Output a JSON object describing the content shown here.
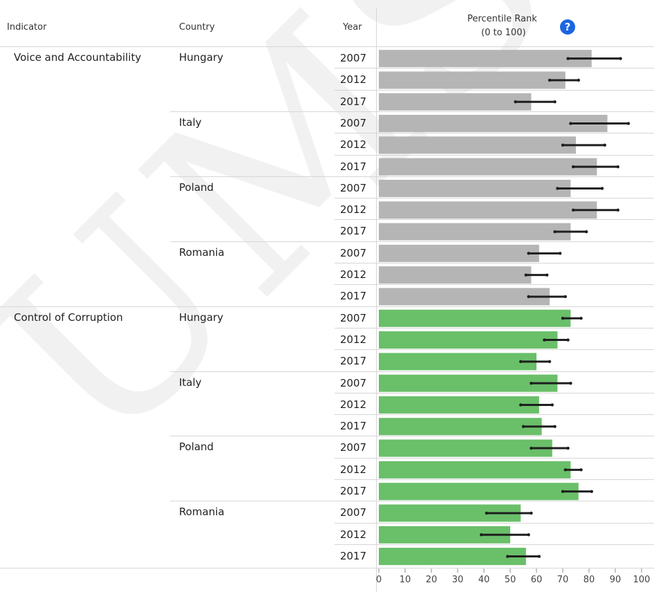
{
  "header": {
    "indicator": "Indicator",
    "country": "Country",
    "year": "Year",
    "rank_line1": "Percentile Rank",
    "rank_line2": "(0 to 100)",
    "help_symbol": "?"
  },
  "watermark": "UMS",
  "colors": {
    "voice": "#b5b5b5",
    "corruption": "#6abf69",
    "whisker": "#1e1e1e",
    "help": "#1a66e0"
  },
  "chart_data": {
    "type": "bar",
    "orientation": "horizontal",
    "xlim": [
      0,
      100
    ],
    "ticks": [
      "0",
      "10",
      "20",
      "30",
      "40",
      "50",
      "60",
      "70",
      "80",
      "90",
      "100"
    ],
    "grid": false,
    "groups": [
      {
        "indicator": "Voice and Accountability",
        "color_key": "voice",
        "countries": [
          {
            "name": "Hungary",
            "rows": [
              {
                "year": "2007",
                "value": 81,
                "low": 72,
                "high": 92
              },
              {
                "year": "2012",
                "value": 71,
                "low": 65,
                "high": 76
              },
              {
                "year": "2017",
                "value": 58,
                "low": 52,
                "high": 67
              }
            ]
          },
          {
            "name": "Italy",
            "rows": [
              {
                "year": "2007",
                "value": 87,
                "low": 73,
                "high": 95
              },
              {
                "year": "2012",
                "value": 75,
                "low": 70,
                "high": 86
              },
              {
                "year": "2017",
                "value": 83,
                "low": 74,
                "high": 91
              }
            ]
          },
          {
            "name": "Poland",
            "rows": [
              {
                "year": "2007",
                "value": 73,
                "low": 68,
                "high": 85
              },
              {
                "year": "2012",
                "value": 83,
                "low": 74,
                "high": 91
              },
              {
                "year": "2017",
                "value": 73,
                "low": 67,
                "high": 79
              }
            ]
          },
          {
            "name": "Romania",
            "rows": [
              {
                "year": "2007",
                "value": 61,
                "low": 57,
                "high": 69
              },
              {
                "year": "2012",
                "value": 58,
                "low": 56,
                "high": 64
              },
              {
                "year": "2017",
                "value": 65,
                "low": 57,
                "high": 71
              }
            ]
          }
        ]
      },
      {
        "indicator": "Control of Corruption",
        "color_key": "corruption",
        "countries": [
          {
            "name": "Hungary",
            "rows": [
              {
                "year": "2007",
                "value": 73,
                "low": 70,
                "high": 77
              },
              {
                "year": "2012",
                "value": 68,
                "low": 63,
                "high": 72
              },
              {
                "year": "2017",
                "value": 60,
                "low": 54,
                "high": 65
              }
            ]
          },
          {
            "name": "Italy",
            "rows": [
              {
                "year": "2007",
                "value": 68,
                "low": 58,
                "high": 73
              },
              {
                "year": "2012",
                "value": 61,
                "low": 54,
                "high": 66
              },
              {
                "year": "2017",
                "value": 62,
                "low": 55,
                "high": 67
              }
            ]
          },
          {
            "name": "Poland",
            "rows": [
              {
                "year": "2007",
                "value": 66,
                "low": 58,
                "high": 72
              },
              {
                "year": "2012",
                "value": 73,
                "low": 71,
                "high": 77
              },
              {
                "year": "2017",
                "value": 76,
                "low": 70,
                "high": 81
              }
            ]
          },
          {
            "name": "Romania",
            "rows": [
              {
                "year": "2007",
                "value": 54,
                "low": 41,
                "high": 58
              },
              {
                "year": "2012",
                "value": 50,
                "low": 39,
                "high": 57
              },
              {
                "year": "2017",
                "value": 56,
                "low": 49,
                "high": 61
              }
            ]
          }
        ]
      }
    ]
  }
}
